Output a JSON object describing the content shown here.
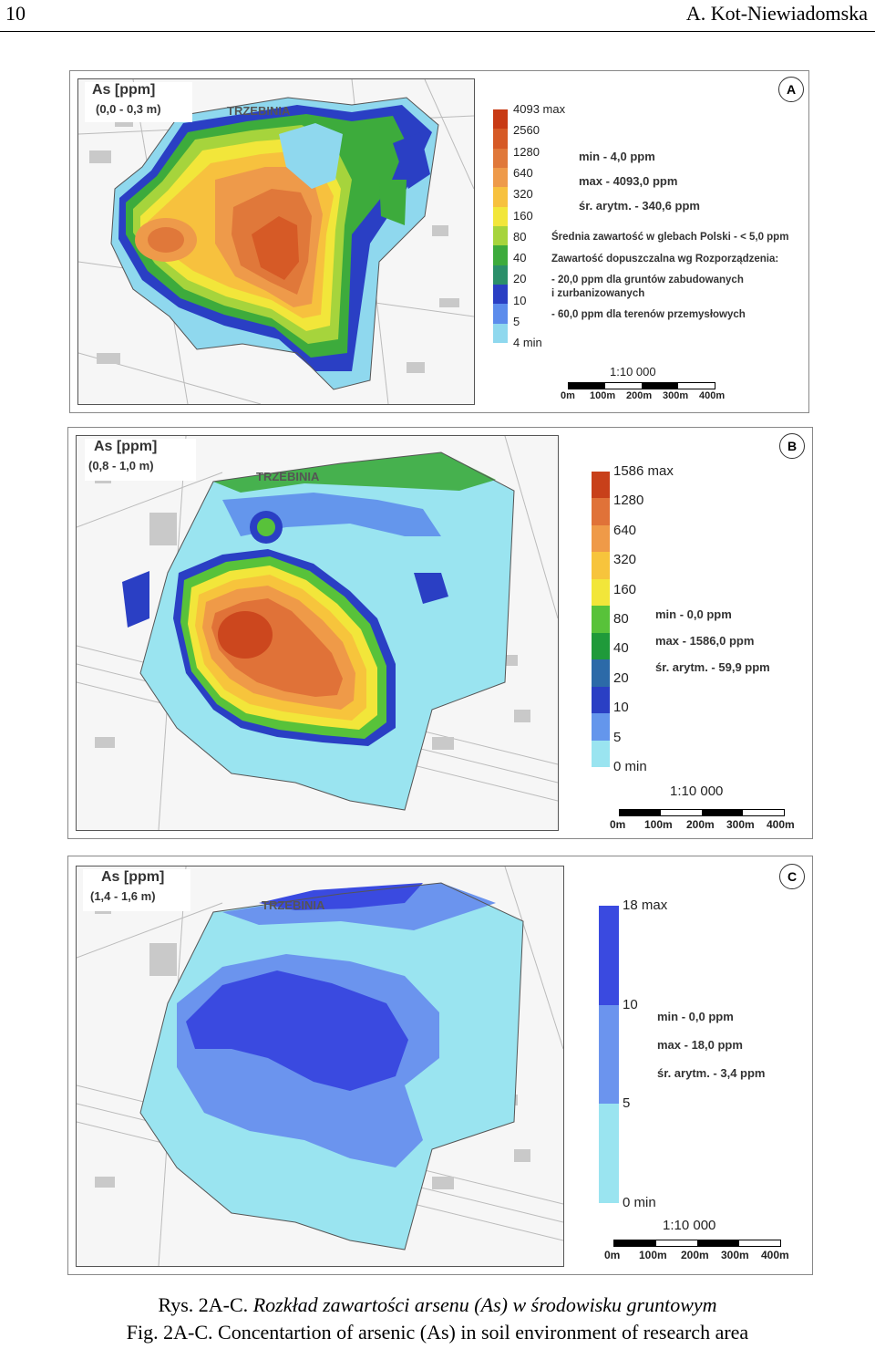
{
  "header": {
    "page_number": "10",
    "author": "A. Kot-Niewiadomska"
  },
  "panels": [
    {
      "id": "A",
      "label": "A",
      "title": "As [ppm]",
      "depth": "(0,0 - 0,3 m)",
      "town": "TRZEBINIA",
      "legend_ticks": [
        "4093 max",
        "2560",
        "1280",
        "640",
        "320",
        "160",
        "80",
        "40",
        "20",
        "10",
        "5",
        "4 min"
      ],
      "legend_colors": [
        "#c83a14",
        "#d65a26",
        "#e0783a",
        "#ee9a4a",
        "#f7c13e",
        "#f2e63a",
        "#a6d43c",
        "#3dab3c",
        "#2b8f6a",
        "#2a3fc4",
        "#5c8cec",
        "#8fd8ee"
      ],
      "stats": [
        "min - 4,0 ppm",
        "max - 4093,0 ppm",
        "śr. arytm. - 340,6 ppm"
      ],
      "note": [
        "Średnia zawartość w glebach Polski - < 5,0 ppm",
        "Zawartość dopuszczalna wg Rozporządzenia:",
        "- 20,0 ppm dla gruntów zabudowanych",
        "  i zurbanizowanych",
        "- 60,0 ppm dla terenów przemysłowych"
      ],
      "scale_title": "1:10 000",
      "scale_ticks": [
        "0m",
        "100m",
        "200m",
        "300m",
        "400m"
      ]
    },
    {
      "id": "B",
      "label": "B",
      "title": "As [ppm]",
      "depth": "(0,8 - 1,0 m)",
      "town": "TRZEBINIA",
      "legend_ticks": [
        "1586 max",
        "1280",
        "640",
        "320",
        "160",
        "80",
        "40",
        "20",
        "10",
        "5",
        "0 min"
      ],
      "legend_colors": [
        "#c8401a",
        "#e07238",
        "#ef9a48",
        "#f7c43c",
        "#f2e63a",
        "#58c23a",
        "#1f9a3a",
        "#2c6aa8",
        "#2a3fc4",
        "#6496ec",
        "#9ae4f0"
      ],
      "stats": [
        "min - 0,0 ppm",
        "max - 1586,0 ppm",
        "śr. arytm. - 59,9 ppm"
      ],
      "scale_title": "1:10 000",
      "scale_ticks": [
        "0m",
        "100m",
        "200m",
        "300m",
        "400m"
      ]
    },
    {
      "id": "C",
      "label": "C",
      "title": "As [ppm]",
      "depth": "(1,4 - 1,6 m)",
      "town": "TRZEBINIA",
      "legend_ticks": [
        "18 max",
        "10",
        "5",
        "0 min"
      ],
      "legend_colors": [
        "#3a4ae0",
        "#6b94ee",
        "#9ae4f0"
      ],
      "stats": [
        "min - 0,0 ppm",
        "max - 18,0 ppm",
        "śr. arytm. - 3,4 ppm"
      ],
      "scale_title": "1:10 000",
      "scale_ticks": [
        "0m",
        "100m",
        "200m",
        "300m",
        "400m"
      ]
    }
  ],
  "caption": {
    "pl_prefix": "Rys. 2A-C. ",
    "pl_text": "Rozkład zawartości arsenu (As) w środowisku gruntowym",
    "en": "Fig. 2A-C. Concentartion of arsenic (As) in soil environment of research area"
  }
}
